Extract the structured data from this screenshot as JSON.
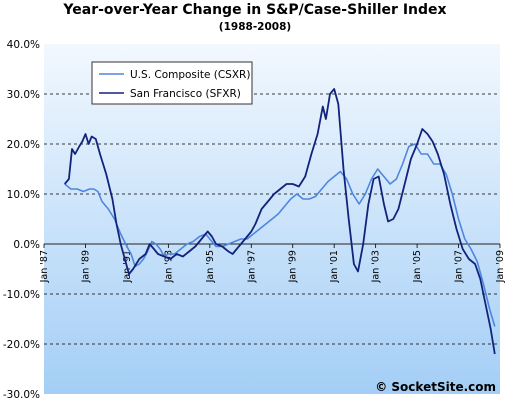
{
  "chart_data": {
    "type": "line",
    "title": "Year-over-Year Change in S&P/Case-Shiller Index",
    "subtitle": "(1988-2008)",
    "y_range": [
      -30,
      40
    ],
    "y_ticks": [
      40,
      30,
      20,
      10,
      0,
      -10,
      -20,
      -30
    ],
    "y_tick_labels": [
      "40.0%",
      "30.0%",
      "20.0%",
      "10.0%",
      "0.0%",
      "-10.0%",
      "-20.0%",
      "-30.0%"
    ],
    "x_range": [
      1987,
      2009
    ],
    "x_ticks": [
      1987,
      1989,
      1991,
      1993,
      1995,
      1997,
      1999,
      2001,
      2003,
      2005,
      2007,
      2009
    ],
    "x_tick_labels": [
      "Jan '87",
      "Jan '89",
      "Jan '91",
      "Jan '93",
      "Jan '95",
      "Jan '97",
      "Jan '99",
      "Jan '01",
      "Jan '03",
      "Jan '05",
      "Jan '07",
      "Jan '09"
    ],
    "grid": "horizontal dashed at 10%, 20%, 30%",
    "legend_position": "top-left",
    "colors": {
      "background_top": "#f2f8fe",
      "background_bottom": "#a4cef6",
      "zero_line": "#222222"
    },
    "series": [
      {
        "name": "U.S. Composite (CSXR)",
        "color": "#4f86de",
        "points": [
          [
            1988.0,
            12.0
          ],
          [
            1988.3,
            11.0
          ],
          [
            1988.6,
            11.0
          ],
          [
            1988.9,
            10.5
          ],
          [
            1989.2,
            11.0
          ],
          [
            1989.4,
            11.0
          ],
          [
            1989.6,
            10.5
          ],
          [
            1989.8,
            8.5
          ],
          [
            1990.1,
            7.0
          ],
          [
            1990.4,
            5.0
          ],
          [
            1990.7,
            2.0
          ],
          [
            1991.0,
            -0.5
          ],
          [
            1991.2,
            -2.0
          ],
          [
            1991.4,
            -4.5
          ],
          [
            1991.6,
            -4.0
          ],
          [
            1991.8,
            -3.0
          ],
          [
            1992.0,
            -1.5
          ],
          [
            1992.2,
            0.5
          ],
          [
            1992.4,
            0.0
          ],
          [
            1992.6,
            -1.0
          ],
          [
            1992.8,
            -2.5
          ],
          [
            1993.0,
            -2.0
          ],
          [
            1993.3,
            -2.0
          ],
          [
            1993.6,
            -1.0
          ],
          [
            1993.9,
            0.0
          ],
          [
            1994.2,
            0.5
          ],
          [
            1994.5,
            1.5
          ],
          [
            1994.8,
            2.0
          ],
          [
            1995.0,
            1.0
          ],
          [
            1995.3,
            -0.5
          ],
          [
            1995.6,
            -0.5
          ],
          [
            1995.9,
            0.0
          ],
          [
            1996.2,
            0.5
          ],
          [
            1996.5,
            1.0
          ],
          [
            1996.8,
            1.0
          ],
          [
            1997.1,
            2.0
          ],
          [
            1997.4,
            3.0
          ],
          [
            1997.7,
            4.0
          ],
          [
            1998.0,
            5.0
          ],
          [
            1998.3,
            6.0
          ],
          [
            1998.6,
            7.5
          ],
          [
            1998.9,
            9.0
          ],
          [
            1999.2,
            10.0
          ],
          [
            1999.5,
            9.0
          ],
          [
            1999.8,
            9.0
          ],
          [
            2000.1,
            9.5
          ],
          [
            2000.4,
            11.0
          ],
          [
            2000.7,
            12.5
          ],
          [
            2001.0,
            13.5
          ],
          [
            2001.3,
            14.5
          ],
          [
            2001.6,
            13.0
          ],
          [
            2001.9,
            10.0
          ],
          [
            2002.2,
            8.0
          ],
          [
            2002.5,
            10.0
          ],
          [
            2002.8,
            13.0
          ],
          [
            2003.1,
            15.0
          ],
          [
            2003.4,
            13.5
          ],
          [
            2003.7,
            12.0
          ],
          [
            2004.0,
            13.0
          ],
          [
            2004.3,
            16.0
          ],
          [
            2004.6,
            19.5
          ],
          [
            2004.9,
            20.0
          ],
          [
            2005.2,
            18.0
          ],
          [
            2005.5,
            18.0
          ],
          [
            2005.8,
            16.0
          ],
          [
            2006.1,
            16.0
          ],
          [
            2006.4,
            14.0
          ],
          [
            2006.7,
            10.0
          ],
          [
            2007.0,
            5.0
          ],
          [
            2007.3,
            1.0
          ],
          [
            2007.6,
            -1.0
          ],
          [
            2007.9,
            -3.5
          ],
          [
            2008.2,
            -8.0
          ],
          [
            2008.5,
            -13.0
          ],
          [
            2008.75,
            -16.5
          ]
        ]
      },
      {
        "name": "San Francisco (SFXR)",
        "color": "#12237d",
        "points": [
          [
            1988.0,
            12.0
          ],
          [
            1988.2,
            13.0
          ],
          [
            1988.35,
            19.0
          ],
          [
            1988.5,
            18.0
          ],
          [
            1988.7,
            19.5
          ],
          [
            1988.85,
            20.5
          ],
          [
            1989.0,
            22.0
          ],
          [
            1989.15,
            20.0
          ],
          [
            1989.3,
            21.5
          ],
          [
            1989.5,
            21.0
          ],
          [
            1989.7,
            18.0
          ],
          [
            1990.0,
            14.0
          ],
          [
            1990.3,
            9.0
          ],
          [
            1990.5,
            4.0
          ],
          [
            1990.7,
            0.0
          ],
          [
            1990.9,
            -3.0
          ],
          [
            1991.1,
            -6.0
          ],
          [
            1991.3,
            -5.0
          ],
          [
            1991.6,
            -3.0
          ],
          [
            1991.9,
            -2.0
          ],
          [
            1992.1,
            0.0
          ],
          [
            1992.3,
            -1.0
          ],
          [
            1992.5,
            -2.0
          ],
          [
            1992.8,
            -2.5
          ],
          [
            1993.1,
            -3.0
          ],
          [
            1993.4,
            -2.0
          ],
          [
            1993.7,
            -2.5
          ],
          [
            1994.0,
            -1.5
          ],
          [
            1994.3,
            -0.5
          ],
          [
            1994.6,
            1.0
          ],
          [
            1994.9,
            2.5
          ],
          [
            1995.1,
            1.5
          ],
          [
            1995.3,
            0.0
          ],
          [
            1995.6,
            -0.5
          ],
          [
            1995.9,
            -1.5
          ],
          [
            1996.1,
            -2.0
          ],
          [
            1996.4,
            -0.5
          ],
          [
            1996.7,
            1.0
          ],
          [
            1997.0,
            2.5
          ],
          [
            1997.2,
            4.0
          ],
          [
            1997.5,
            7.0
          ],
          [
            1997.8,
            8.5
          ],
          [
            1998.1,
            10.0
          ],
          [
            1998.4,
            11.0
          ],
          [
            1998.7,
            12.0
          ],
          [
            1999.0,
            12.0
          ],
          [
            1999.3,
            11.5
          ],
          [
            1999.6,
            13.5
          ],
          [
            1999.9,
            18.0
          ],
          [
            2000.2,
            22.0
          ],
          [
            2000.45,
            27.5
          ],
          [
            2000.6,
            25.0
          ],
          [
            2000.8,
            30.0
          ],
          [
            2001.0,
            31.0
          ],
          [
            2001.2,
            28.0
          ],
          [
            2001.45,
            15.0
          ],
          [
            2001.7,
            5.0
          ],
          [
            2001.95,
            -4.0
          ],
          [
            2002.15,
            -5.5
          ],
          [
            2002.4,
            0.0
          ],
          [
            2002.65,
            8.0
          ],
          [
            2002.9,
            13.0
          ],
          [
            2003.15,
            13.5
          ],
          [
            2003.4,
            8.0
          ],
          [
            2003.6,
            4.5
          ],
          [
            2003.85,
            5.0
          ],
          [
            2004.1,
            7.0
          ],
          [
            2004.4,
            12.0
          ],
          [
            2004.7,
            17.0
          ],
          [
            2005.0,
            20.0
          ],
          [
            2005.25,
            23.0
          ],
          [
            2005.5,
            22.0
          ],
          [
            2005.75,
            20.5
          ],
          [
            2006.0,
            18.0
          ],
          [
            2006.3,
            14.0
          ],
          [
            2006.6,
            8.0
          ],
          [
            2006.9,
            3.0
          ],
          [
            2007.2,
            -1.0
          ],
          [
            2007.5,
            -3.0
          ],
          [
            2007.8,
            -4.0
          ],
          [
            2008.05,
            -7.0
          ],
          [
            2008.3,
            -12.0
          ],
          [
            2008.55,
            -17.0
          ],
          [
            2008.75,
            -22.0
          ]
        ]
      }
    ]
  },
  "watermark": "© SocketSite.com"
}
